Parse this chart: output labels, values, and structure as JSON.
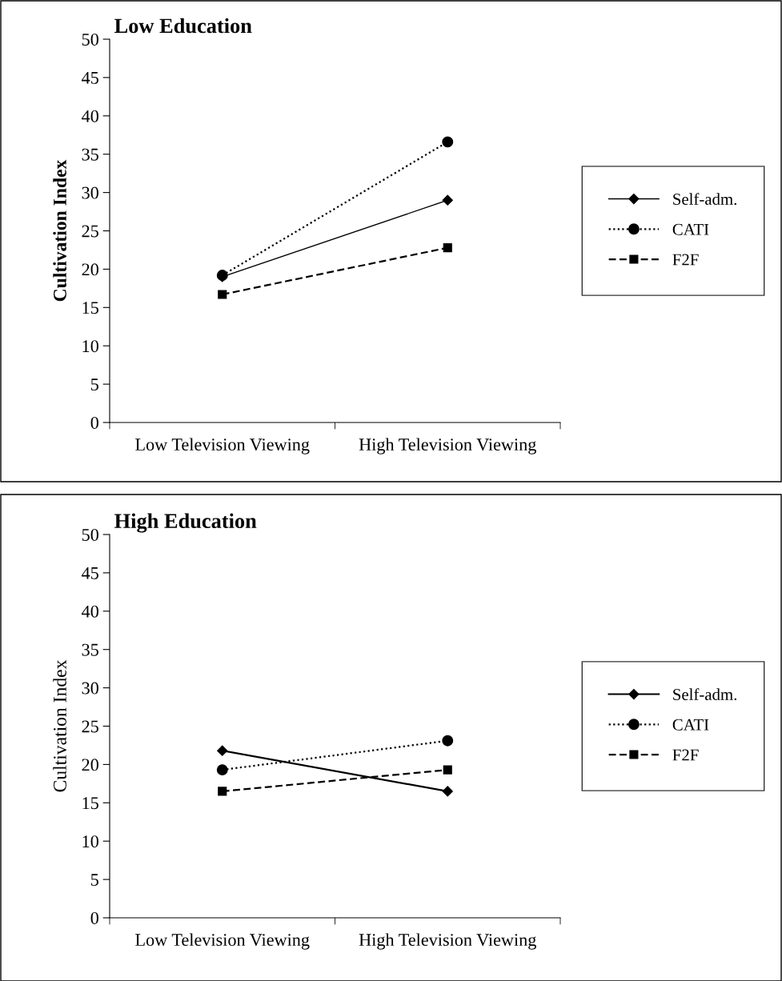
{
  "chart_data": [
    {
      "type": "line",
      "title": "Low Education",
      "ylabel": "Cultivation Index",
      "categories": [
        "Low Television Viewing",
        "High Television Viewing"
      ],
      "ylim": [
        0,
        50
      ],
      "yticks": [
        0,
        5,
        10,
        15,
        20,
        25,
        30,
        35,
        40,
        45,
        50
      ],
      "grid": false,
      "legend": "right",
      "series": [
        {
          "name": "Self-adm.",
          "color": "#000000",
          "marker": "diamond",
          "line_style": "solid",
          "values": [
            19.0,
            29.0
          ]
        },
        {
          "name": "CATI",
          "color": "#000000",
          "marker": "circle",
          "line_style": "dotted",
          "values": [
            19.2,
            36.6
          ]
        },
        {
          "name": "F2F",
          "color": "#000000",
          "marker": "square",
          "line_style": "dashed",
          "values": [
            16.7,
            22.8
          ]
        }
      ]
    },
    {
      "type": "line",
      "title": "High Education",
      "ylabel": "Cultivation Index",
      "categories": [
        "Low Television Viewing",
        "High Television Viewing"
      ],
      "ylim": [
        0,
        50
      ],
      "yticks": [
        0,
        5,
        10,
        15,
        20,
        25,
        30,
        35,
        40,
        45,
        50
      ],
      "grid": false,
      "legend": "right",
      "series": [
        {
          "name": "Self-adm.",
          "color": "#000000",
          "marker": "diamond",
          "line_style": "solid",
          "values": [
            21.8,
            16.5
          ]
        },
        {
          "name": "CATI",
          "color": "#000000",
          "marker": "circle",
          "line_style": "dotted",
          "values": [
            19.3,
            23.1
          ]
        },
        {
          "name": "F2F",
          "color": "#000000",
          "marker": "square",
          "line_style": "dashed",
          "values": [
            16.5,
            19.3
          ]
        }
      ]
    }
  ]
}
